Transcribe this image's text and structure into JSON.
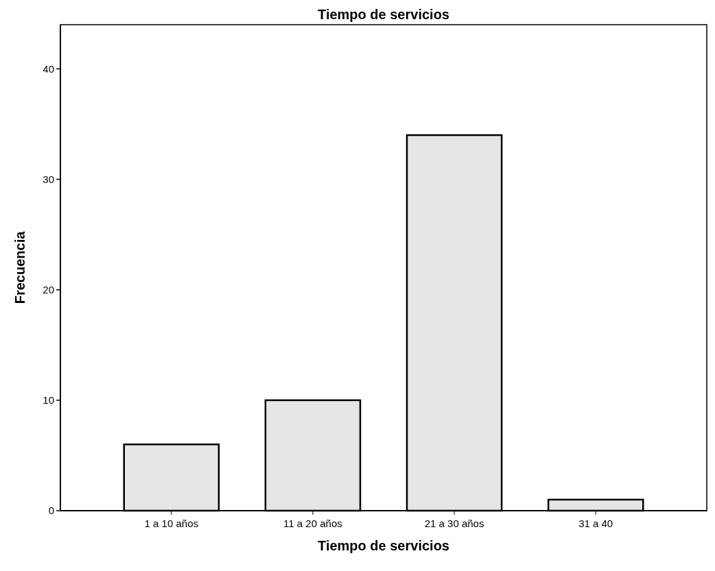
{
  "chart_data": {
    "type": "bar",
    "title": "Tiempo de servicios",
    "xlabel": "Tiempo de servicios",
    "ylabel": "Frecuencia",
    "categories": [
      "1 a 10 años",
      "11 a 20 años",
      "21 a 30 años",
      "31 a 40"
    ],
    "values": [
      6,
      10,
      34,
      1
    ],
    "color": "#e6e6e6",
    "ylim": [
      0,
      44
    ],
    "yticks": [
      0,
      10,
      20,
      30,
      40
    ],
    "grid": false
  }
}
